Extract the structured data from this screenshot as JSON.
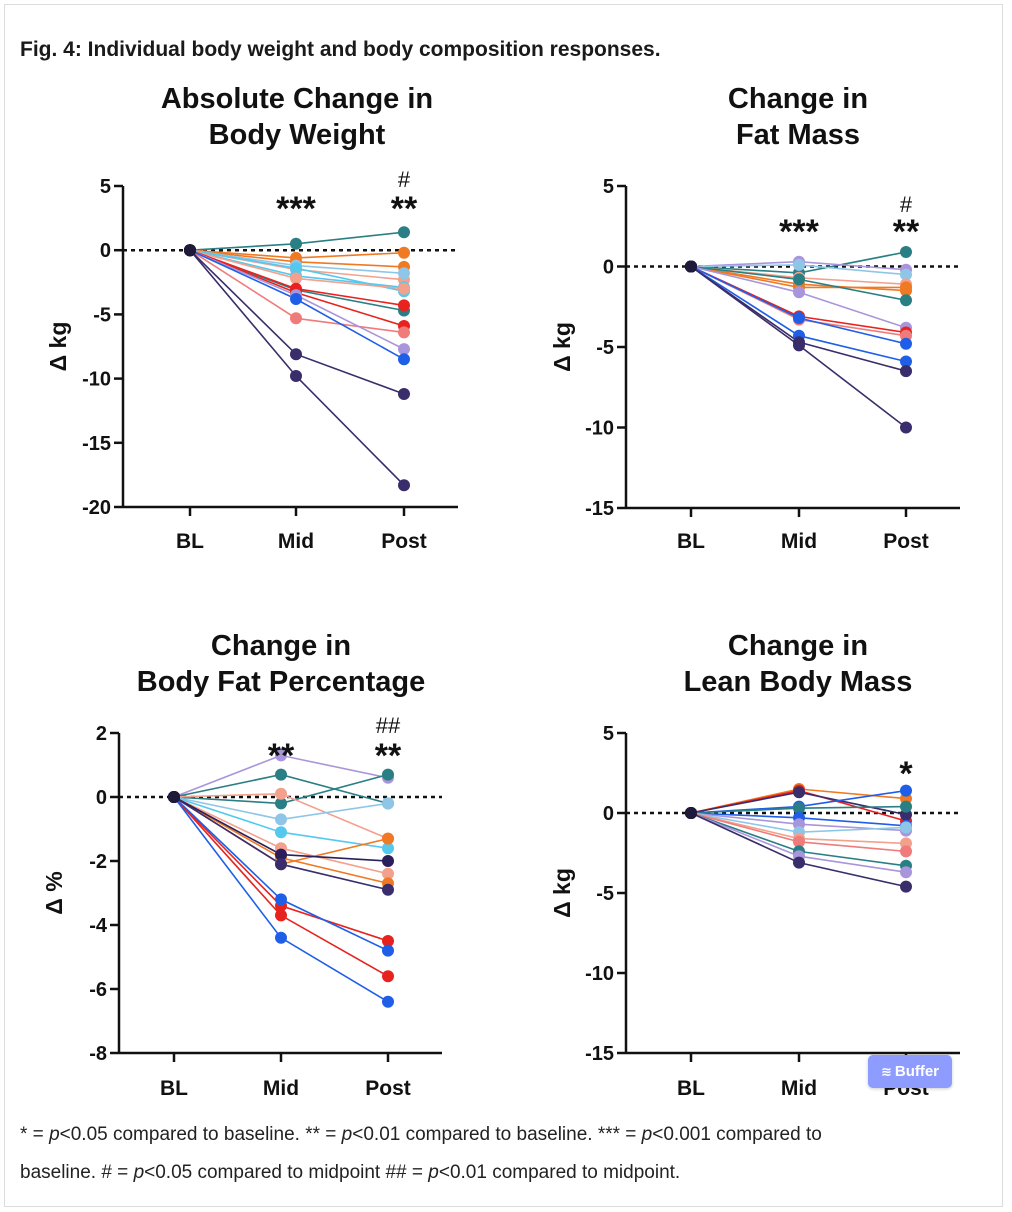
{
  "figure_title": "Fig. 4: Individual body weight and body composition responses.",
  "caption": {
    "line1": [
      "* = ",
      "p",
      "<0.05 compared to baseline. ** = ",
      "p",
      "<0.01 compared to baseline. *** = ",
      "p",
      "<0.001 compared to"
    ],
    "line2": [
      "baseline. # = ",
      "p",
      "<0.05 compared to midpoint ## = ",
      "p",
      "<0.01 compared to midpoint."
    ]
  },
  "buffer_button": {
    "label": "Buffer",
    "icon": "layers-icon"
  },
  "colors": {
    "dark_purple": "#3a2d6b",
    "navy": "#2a1f5a",
    "blue": "#1f5fe8",
    "red": "#e8231f",
    "orange": "#ef7a23",
    "salmon": "#f3a08c",
    "pink": "#f07b7b",
    "teal": "#2a7f84",
    "sky": "#55c8ee",
    "lightblue": "#8fc6e8",
    "lavender": "#a995dc"
  },
  "chart_data": [
    {
      "type": "line",
      "title": [
        "Absolute Change in",
        "Body Weight"
      ],
      "ylabel": "Δ kg",
      "categories": [
        "BL",
        "Mid",
        "Post"
      ],
      "ylim": [
        -20,
        5
      ],
      "yticks": [
        5,
        0,
        -5,
        -10,
        -15,
        -20
      ],
      "reference_line": 0,
      "annotations": {
        "Mid": [
          "***"
        ],
        "Post": [
          "**",
          "#"
        ]
      },
      "series": [
        {
          "color": "#2a7f84",
          "values": [
            0,
            0.5,
            1.4
          ]
        },
        {
          "color": "#ef7a23",
          "values": [
            0,
            -0.6,
            -0.2
          ]
        },
        {
          "color": "#ef7a23",
          "values": [
            0,
            -0.9,
            -1.3
          ]
        },
        {
          "color": "#f3a08c",
          "values": [
            0,
            -1.5,
            -2.3
          ]
        },
        {
          "color": "#8fc6e8",
          "values": [
            0,
            -1.2,
            -1.8
          ]
        },
        {
          "color": "#55c8ee",
          "values": [
            0,
            -2.0,
            -2.9
          ]
        },
        {
          "color": "#55c8ee",
          "values": [
            0,
            -1.4,
            -3.2
          ]
        },
        {
          "color": "#f3a08c",
          "values": [
            0,
            -2.2,
            -3.0
          ]
        },
        {
          "color": "#2a7f84",
          "values": [
            0,
            -3.1,
            -4.7
          ]
        },
        {
          "color": "#e8231f",
          "values": [
            0,
            -3.0,
            -4.3
          ]
        },
        {
          "color": "#e8231f",
          "values": [
            0,
            -3.3,
            -5.9
          ]
        },
        {
          "color": "#f07b7b",
          "values": [
            0,
            -5.3,
            -6.4
          ]
        },
        {
          "color": "#a995dc",
          "values": [
            0,
            -3.5,
            -7.7
          ]
        },
        {
          "color": "#1f5fe8",
          "values": [
            0,
            -3.8,
            -8.5
          ]
        },
        {
          "color": "#3a2d6b",
          "values": [
            0,
            -8.1,
            -11.2
          ]
        },
        {
          "color": "#3a2d6b",
          "values": [
            0,
            -9.8,
            -18.3
          ]
        }
      ]
    },
    {
      "type": "line",
      "title": [
        "Change in",
        "Fat Mass"
      ],
      "ylabel": "Δ kg",
      "categories": [
        "BL",
        "Mid",
        "Post"
      ],
      "ylim": [
        -15,
        5
      ],
      "yticks": [
        5,
        0,
        -5,
        -10,
        -15
      ],
      "reference_line": 0,
      "annotations": {
        "Mid": [
          "***"
        ],
        "Post": [
          "**",
          "#"
        ]
      },
      "series": [
        {
          "color": "#2a7f84",
          "values": [
            0,
            -0.4,
            0.9
          ]
        },
        {
          "color": "#a995dc",
          "values": [
            0,
            0.3,
            -0.2
          ]
        },
        {
          "color": "#8fc6e8",
          "values": [
            0,
            0.1,
            -0.5
          ]
        },
        {
          "color": "#f3a08c",
          "values": [
            0,
            -0.7,
            -1.1
          ]
        },
        {
          "color": "#ef7a23",
          "values": [
            0,
            -1.3,
            -1.3
          ]
        },
        {
          "color": "#ef7a23",
          "values": [
            0,
            -1.1,
            -1.5
          ]
        },
        {
          "color": "#2a7f84",
          "values": [
            0,
            -0.8,
            -2.1
          ]
        },
        {
          "color": "#a995dc",
          "values": [
            0,
            -1.6,
            -3.8
          ]
        },
        {
          "color": "#e8231f",
          "values": [
            0,
            -3.1,
            -4.1
          ]
        },
        {
          "color": "#f07b7b",
          "values": [
            0,
            -3.3,
            -4.3
          ]
        },
        {
          "color": "#1f5fe8",
          "values": [
            0,
            -3.2,
            -4.8
          ]
        },
        {
          "color": "#1f5fe8",
          "values": [
            0,
            -4.3,
            -5.9
          ]
        },
        {
          "color": "#3a2d6b",
          "values": [
            0,
            -4.7,
            -6.5
          ]
        },
        {
          "color": "#3a2d6b",
          "values": [
            0,
            -4.9,
            -10.0
          ]
        }
      ]
    },
    {
      "type": "line",
      "title": [
        "Change in",
        "Body Fat Percentage"
      ],
      "ylabel": "Δ %",
      "categories": [
        "BL",
        "Mid",
        "Post"
      ],
      "ylim": [
        -8,
        2
      ],
      "yticks": [
        2,
        0,
        -2,
        -4,
        -6,
        -8
      ],
      "reference_line": 0,
      "annotations": {
        "Mid": [
          "**"
        ],
        "Post": [
          "**",
          "##"
        ]
      },
      "series": [
        {
          "color": "#a995dc",
          "values": [
            0,
            1.3,
            0.6
          ]
        },
        {
          "color": "#2a7f84",
          "values": [
            0,
            0.7,
            -0.2
          ]
        },
        {
          "color": "#2a7f84",
          "values": [
            0,
            -0.2,
            0.7
          ]
        },
        {
          "color": "#f3a08c",
          "values": [
            0,
            0.1,
            -1.3
          ]
        },
        {
          "color": "#8fc6e8",
          "values": [
            0,
            -0.7,
            -0.2
          ]
        },
        {
          "color": "#55c8ee",
          "values": [
            0,
            -1.1,
            -1.6
          ]
        },
        {
          "color": "#ef7a23",
          "values": [
            0,
            -2.1,
            -1.3
          ]
        },
        {
          "color": "#f3a08c",
          "values": [
            0,
            -1.6,
            -2.4
          ]
        },
        {
          "color": "#ef7a23",
          "values": [
            0,
            -1.9,
            -2.7
          ]
        },
        {
          "color": "#2a1f5a",
          "values": [
            0,
            -1.8,
            -2.0
          ]
        },
        {
          "color": "#3a2d6b",
          "values": [
            0,
            -2.1,
            -2.9
          ]
        },
        {
          "color": "#e8231f",
          "values": [
            0,
            -3.4,
            -4.5
          ]
        },
        {
          "color": "#1f5fe8",
          "values": [
            0,
            -3.2,
            -4.8
          ]
        },
        {
          "color": "#e8231f",
          "values": [
            0,
            -3.7,
            -5.6
          ]
        },
        {
          "color": "#1f5fe8",
          "values": [
            0,
            -4.4,
            -6.4
          ]
        }
      ]
    },
    {
      "type": "line",
      "title": [
        "Change in",
        "Lean Body Mass"
      ],
      "ylabel": "Δ kg",
      "categories": [
        "BL",
        "Mid",
        "Post"
      ],
      "ylim": [
        -15,
        5
      ],
      "yticks": [
        5,
        0,
        -5,
        -10,
        -15
      ],
      "reference_line": 0,
      "annotations": {
        "Post": [
          "*"
        ]
      },
      "series": [
        {
          "color": "#ef7a23",
          "values": [
            0,
            1.5,
            0.9
          ]
        },
        {
          "color": "#e8231f",
          "values": [
            0,
            1.4,
            -0.5
          ]
        },
        {
          "color": "#3a2d6b",
          "values": [
            0,
            1.3,
            -0.1
          ]
        },
        {
          "color": "#1f5fe8",
          "values": [
            0,
            0.4,
            1.4
          ]
        },
        {
          "color": "#2a7f84",
          "values": [
            0,
            0.3,
            0.4
          ]
        },
        {
          "color": "#1f5fe8",
          "values": [
            0,
            -0.3,
            -0.8
          ]
        },
        {
          "color": "#a995dc",
          "values": [
            0,
            -0.7,
            -1.1
          ]
        },
        {
          "color": "#8fc6e8",
          "values": [
            0,
            -1.2,
            -0.9
          ]
        },
        {
          "color": "#f3a08c",
          "values": [
            0,
            -1.6,
            -1.9
          ]
        },
        {
          "color": "#f07b7b",
          "values": [
            0,
            -1.8,
            -2.4
          ]
        },
        {
          "color": "#2a7f84",
          "values": [
            0,
            -2.4,
            -3.3
          ]
        },
        {
          "color": "#a995dc",
          "values": [
            0,
            -2.7,
            -3.7
          ]
        },
        {
          "color": "#3a2d6b",
          "values": [
            0,
            -3.1,
            -4.6
          ]
        }
      ]
    }
  ]
}
